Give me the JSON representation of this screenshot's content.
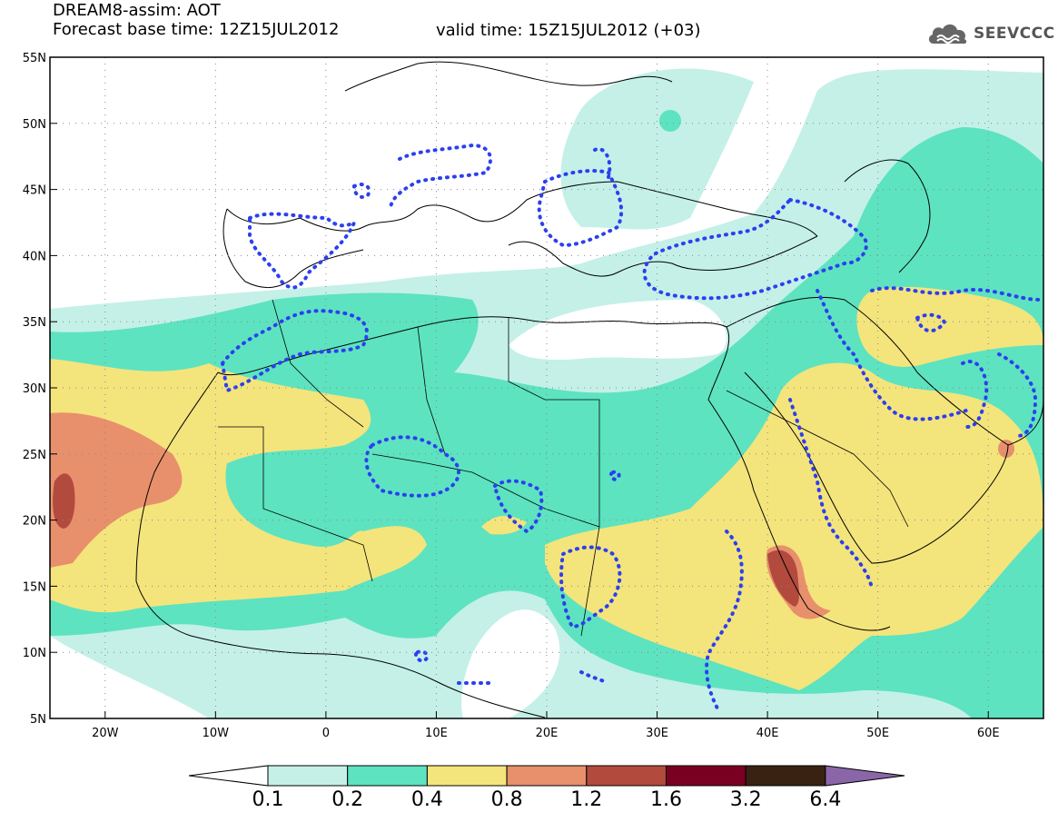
{
  "header": {
    "title": "DREAM8-assim: AOT",
    "base_time": "Forecast base time: 12Z15JUL2012",
    "valid_time": "valid time: 15Z15JUL2012 (+03)",
    "logo_text": "SEEVCCC"
  },
  "axes": {
    "lat_labels": [
      "55N",
      "50N",
      "45N",
      "40N",
      "35N",
      "30N",
      "25N",
      "20N",
      "15N",
      "10N",
      "5N"
    ],
    "lon_labels": [
      "20W",
      "10W",
      "0",
      "10E",
      "20E",
      "30E",
      "40E",
      "50E",
      "60E"
    ]
  },
  "colorbar": {
    "labels": [
      "0.1",
      "0.2",
      "0.4",
      "0.8",
      "1.2",
      "1.6",
      "3.2",
      "6.4"
    ],
    "colors": [
      "#ffffff",
      "#c4f0e8",
      "#5de3c0",
      "#f4e47c",
      "#e8906c",
      "#b24a3e",
      "#7a0022",
      "#3a2212",
      "#8a66a8"
    ]
  },
  "colors": {
    "dust_level_1": "#c4f0e8",
    "dust_level_2": "#5de3c0",
    "dust_level_3": "#f4e47c",
    "dust_level_4": "#e8906c",
    "dust_level_5": "#b24a3e",
    "dotted_contour": "#2c3ff0"
  }
}
